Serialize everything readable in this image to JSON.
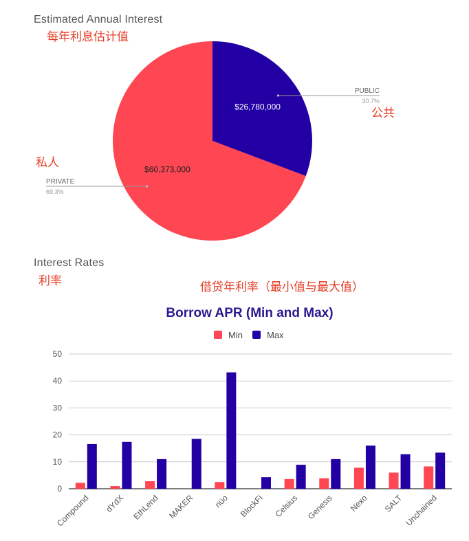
{
  "pie_section": {
    "title": "Estimated Annual Interest",
    "title_cn": "每年利息估计值",
    "label_public_cn": "公共",
    "label_private_cn": "私人"
  },
  "bar_section": {
    "title": "Interest Rates",
    "title_cn": "利率",
    "subtitle_cn": "借贷年利率（最小值与最大值）"
  },
  "chart_data": [
    {
      "type": "pie",
      "slices": [
        {
          "name": "PUBLIC",
          "value": 26780000,
          "value_label": "$26,780,000",
          "percent_label": "30.7%",
          "color": "#2200a3"
        },
        {
          "name": "PRIVATE",
          "value": 60373000,
          "value_label": "$60,373,000",
          "percent_label": "69.3%",
          "color": "#ff4653"
        }
      ]
    },
    {
      "type": "bar",
      "title": "Borrow APR (Min and Max)",
      "legend": "top",
      "grid": true,
      "ylim": [
        0,
        50
      ],
      "yticks": [
        0,
        10,
        20,
        30,
        40,
        50
      ],
      "categories": [
        "Compound",
        "dYdX",
        "EthLend",
        "MAKER",
        "nüo",
        "BlockFi",
        "Celsius",
        "Genesis",
        "Nexo",
        "SALT",
        "Unchained"
      ],
      "series": [
        {
          "name": "Min",
          "color": "#ff4653",
          "values": [
            2.2,
            1.0,
            2.8,
            0,
            2.5,
            0,
            3.6,
            3.9,
            7.8,
            6.0,
            8.3
          ]
        },
        {
          "name": "Max",
          "color": "#2200a3",
          "values": [
            16.6,
            17.4,
            11.0,
            18.5,
            43.2,
            4.3,
            8.9,
            11.0,
            16.0,
            12.8,
            13.4
          ]
        }
      ]
    }
  ]
}
